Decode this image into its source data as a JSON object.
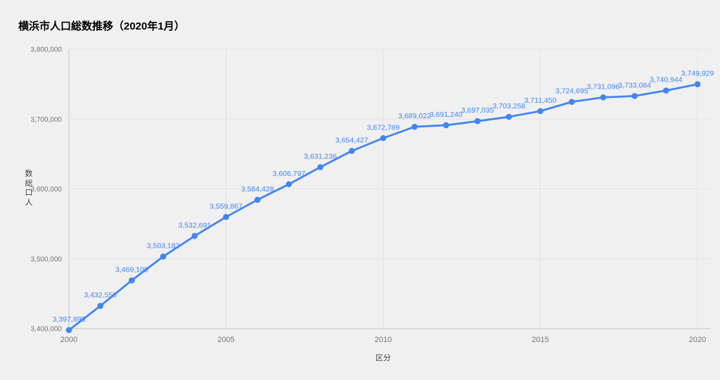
{
  "page": {
    "background": "#f0f0f0"
  },
  "chart_data": {
    "type": "line",
    "title": "横浜市人口総数推移（2020年1月）",
    "xlabel": "区分",
    "ylabel": "人口総数",
    "x": [
      2000,
      2001,
      2002,
      2003,
      2004,
      2005,
      2006,
      2007,
      2008,
      2009,
      2010,
      2011,
      2012,
      2013,
      2014,
      2015,
      2016,
      2017,
      2018,
      2019,
      2020
    ],
    "values": [
      3397895,
      3432558,
      3469108,
      3503182,
      3532691,
      3559867,
      3584428,
      3606797,
      3631236,
      3654427,
      3672789,
      3689022,
      3691240,
      3697035,
      3703258,
      3711450,
      3724695,
      3731096,
      3733084,
      3740944,
      3749929
    ],
    "point_labels": [
      "3,397,895",
      "3,432,558",
      "3,469,108",
      "3,503,182",
      "3,532,691",
      "3,559,867",
      "3,584,428",
      "3,606,797",
      "3,631,236",
      "3,654,427",
      "3,672,789",
      "3,689,022",
      "3,691,240",
      "3,697,035",
      "3,703,258",
      "3,711,450",
      "3,724,695",
      "3,731,096",
      "3,733,084",
      "3,740,944",
      "3,749,929"
    ],
    "xlim": [
      2000,
      2020
    ],
    "ylim": [
      3400000,
      3800000
    ],
    "xticks": [
      2000,
      2005,
      2010,
      2015,
      2020
    ],
    "xtick_labels": [
      "2000",
      "2005",
      "2010",
      "2015",
      "2020"
    ],
    "yticks": [
      3400000,
      3500000,
      3600000,
      3700000,
      3800000
    ],
    "ytick_labels": [
      "3,400,000",
      "3,500,000",
      "3,600,000",
      "3,700,000",
      "3,800,000"
    ],
    "grid": true,
    "legend": "none",
    "marker": "circle",
    "colors": {
      "series": "#4285f4",
      "point_label": "#4285f4",
      "tick_label": "#757575",
      "axis_title": "#424242",
      "title": "#000000",
      "gridline": "#e2e2e2",
      "axis_line": "#c6c6c6",
      "background": "#f0f0f0"
    }
  }
}
